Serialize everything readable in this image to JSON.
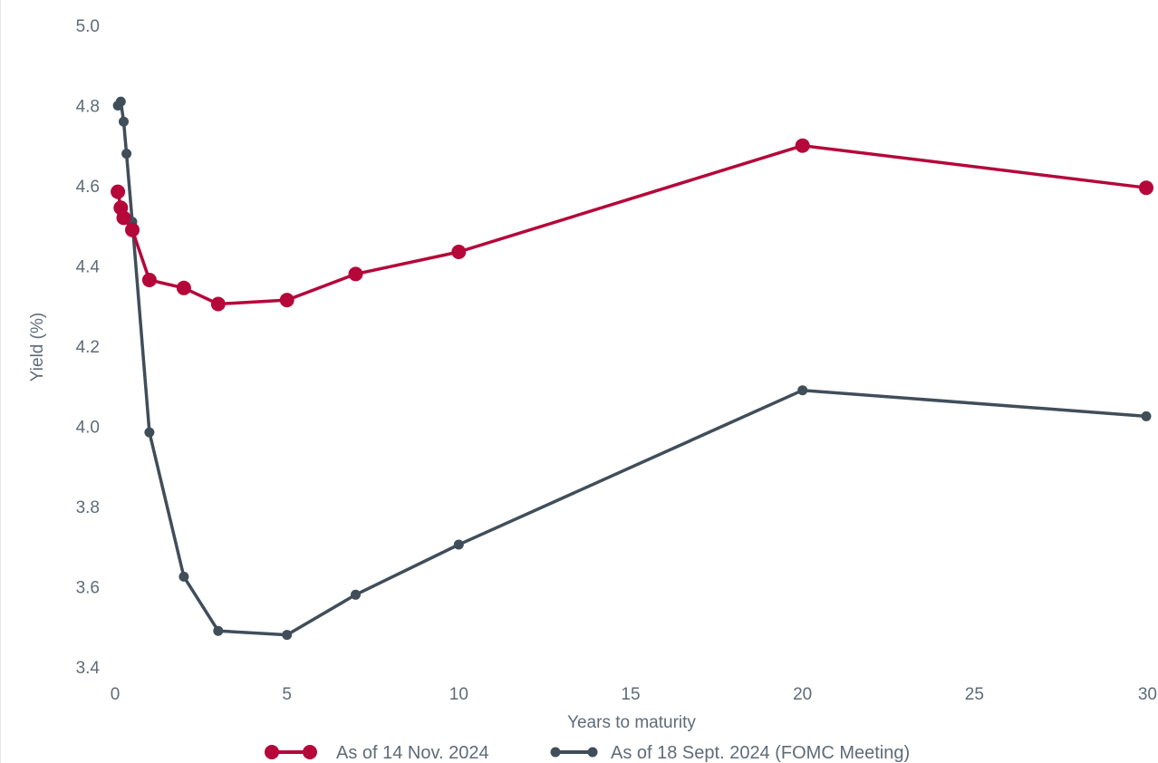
{
  "chart_data": {
    "type": "line",
    "title": "",
    "xlabel": "Years to maturity",
    "ylabel": "Yield (%)",
    "xlim": [
      0,
      30
    ],
    "ylim": [
      3.4,
      5.0
    ],
    "x_ticks": [
      0,
      5,
      10,
      15,
      20,
      25,
      30
    ],
    "y_ticks": [
      "3.4",
      "3.6",
      "3.8",
      "4.0",
      "4.2",
      "4.4",
      "4.6",
      "4.8",
      "5.0"
    ],
    "grid": false,
    "legend_position": "bottom-center",
    "series": [
      {
        "name": "As of 14 Nov. 2024",
        "color": "#b5073a",
        "x": [
          0.083,
          0.167,
          0.25,
          0.5,
          1,
          2,
          3,
          5,
          7,
          10,
          20,
          30
        ],
        "y": [
          4.585,
          4.545,
          4.52,
          4.49,
          4.365,
          4.345,
          4.305,
          4.315,
          4.38,
          4.435,
          4.7,
          4.595
        ]
      },
      {
        "name": "As of 18 Sept. 2024 (FOMC Meeting)",
        "color": "#404e5a",
        "x": [
          0.083,
          0.167,
          0.25,
          0.333,
          0.5,
          1,
          2,
          3,
          5,
          7,
          10,
          20,
          30
        ],
        "y": [
          4.8,
          4.81,
          4.76,
          4.68,
          4.51,
          3.985,
          3.625,
          3.49,
          3.48,
          3.58,
          3.705,
          4.09,
          4.025
        ]
      }
    ]
  }
}
